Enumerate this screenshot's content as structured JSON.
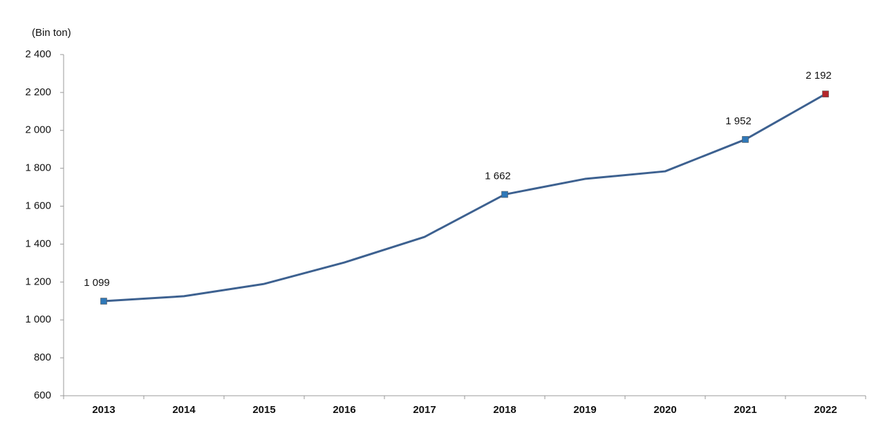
{
  "chart_data": {
    "type": "line",
    "y_label": "(Bin ton)",
    "categories": [
      "2013",
      "2014",
      "2015",
      "2016",
      "2017",
      "2018",
      "2019",
      "2020",
      "2021",
      "2022"
    ],
    "series": [
      {
        "color": "#3d6190",
        "values": [
          1099,
          1125,
          1190,
          1303,
          1438,
          1662,
          1744,
          1784,
          1952,
          2192
        ],
        "value_labels": [
          "1 099",
          null,
          null,
          null,
          null,
          "1 662",
          null,
          null,
          "1 952",
          "2 192"
        ],
        "point_colors": [
          "#2f78b8",
          null,
          null,
          null,
          null,
          "#2f78b8",
          null,
          null,
          "#2f78b8",
          "#b3262b"
        ]
      }
    ],
    "ylim": [
      600,
      2400
    ],
    "yticks": [
      600,
      800,
      {
        "value": 1000,
        "label": "1 000"
      },
      {
        "value": 1200,
        "label": "1 200"
      },
      {
        "value": 1400,
        "label": "1 400"
      },
      {
        "value": 1600,
        "label": "1 600"
      },
      {
        "value": 1800,
        "label": "1 800"
      },
      {
        "value": 2000,
        "label": "2 000"
      },
      {
        "value": 2200,
        "label": "2 200"
      },
      {
        "value": 2400,
        "label": "2 400"
      }
    ],
    "grid": false
  }
}
